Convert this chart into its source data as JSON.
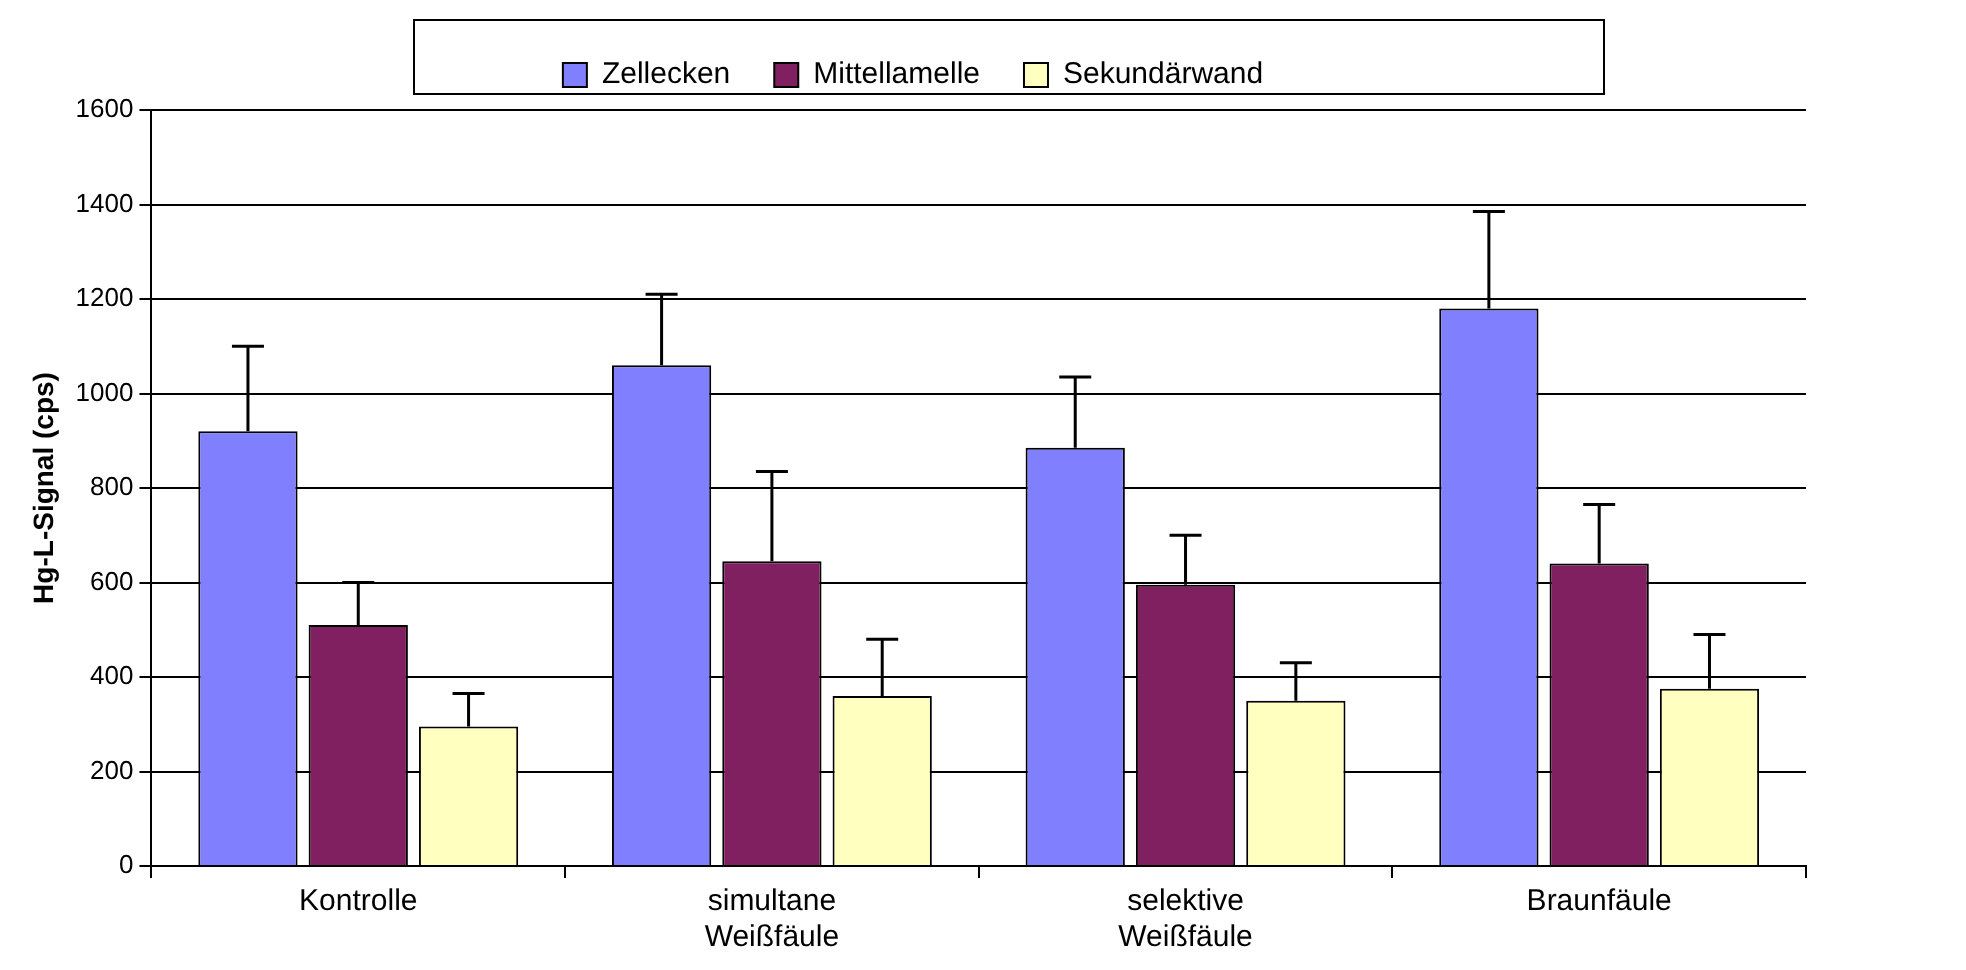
{
  "chart_data": {
    "type": "bar",
    "ylabel": "Hg-L-Signal (cps)",
    "categories": [
      "Kontrolle",
      "simultane Weißfäule",
      "selektive Weißfäule",
      "Braunfäule"
    ],
    "series": [
      {
        "name": "Zellecken",
        "color": "#8080ff",
        "values": [
          920,
          1060,
          885,
          1180
        ],
        "errors": [
          [
            920,
            1100
          ],
          [
            1060,
            1210
          ],
          [
            885,
            1035
          ],
          [
            1180,
            1385
          ]
        ]
      },
      {
        "name": "Mittellamelle",
        "color": "#802060",
        "values": [
          510,
          645,
          595,
          640
        ],
        "errors": [
          [
            510,
            600
          ],
          [
            645,
            835
          ],
          [
            595,
            700
          ],
          [
            640,
            765
          ]
        ]
      },
      {
        "name": "Sekundärwand",
        "color": "#ffffc0",
        "values": [
          295,
          360,
          350,
          375
        ],
        "errors": [
          [
            295,
            365
          ],
          [
            360,
            480
          ],
          [
            350,
            430
          ],
          [
            375,
            490
          ]
        ]
      }
    ],
    "ylim": [
      0,
      1600
    ],
    "yticks": [
      0,
      200,
      400,
      600,
      800,
      1000,
      1200,
      1400,
      1600
    ],
    "grid": "y",
    "legend": "top"
  }
}
